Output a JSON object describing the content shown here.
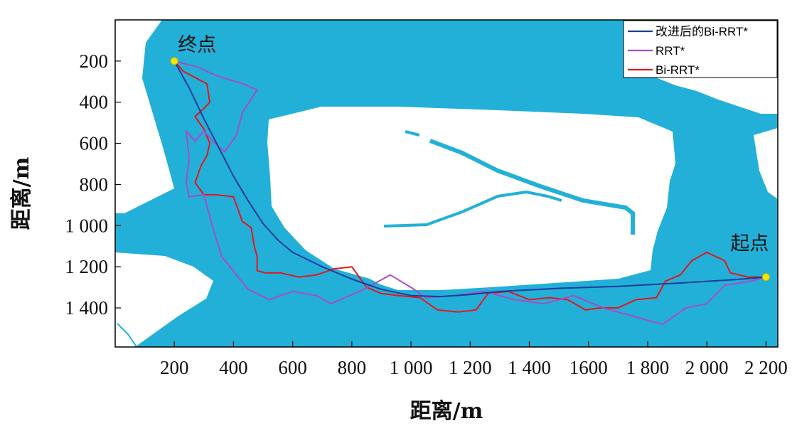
{
  "chart_data": {
    "type": "line",
    "xlabel": "距离/m",
    "ylabel": "距离/m",
    "xlim": [
      0,
      2240
    ],
    "ylim": [
      0,
      1590
    ],
    "y_reversed": true,
    "x_ticks": [
      {
        "value": 200,
        "label": "200"
      },
      {
        "value": 400,
        "label": "400"
      },
      {
        "value": 600,
        "label": "600"
      },
      {
        "value": 800,
        "label": "800"
      },
      {
        "value": 1000,
        "label": "1 000"
      },
      {
        "value": 1200,
        "label": "1 200"
      },
      {
        "value": 1400,
        "label": "1 400"
      },
      {
        "value": 1600,
        "label": "1600"
      },
      {
        "value": 1800,
        "label": "1 800"
      },
      {
        "value": 2000,
        "label": "2 000"
      },
      {
        "value": 2200,
        "label": "2 200"
      }
    ],
    "y_ticks": [
      {
        "value": 200,
        "label": "200"
      },
      {
        "value": 400,
        "label": "400"
      },
      {
        "value": 600,
        "label": "600"
      },
      {
        "value": 800,
        "label": "800"
      },
      {
        "value": 1000,
        "label": "1 000"
      },
      {
        "value": 1200,
        "label": "1 200"
      },
      {
        "value": 1400,
        "label": "1 400"
      }
    ],
    "legend_position": "top-right",
    "water_color": "#22b0d8",
    "annotations": [
      {
        "text": "终点",
        "x": 200,
        "y": 200
      },
      {
        "text": "起点",
        "x": 2200,
        "y": 1250
      }
    ],
    "series": [
      {
        "name": "改进后的Bi-RRT*",
        "color": "#1a3d99",
        "points": [
          [
            200,
            200
          ],
          [
            250,
            330
          ],
          [
            300,
            480
          ],
          [
            350,
            620
          ],
          [
            400,
            760
          ],
          [
            450,
            880
          ],
          [
            500,
            990
          ],
          [
            550,
            1070
          ],
          [
            600,
            1130
          ],
          [
            700,
            1200
          ],
          [
            800,
            1260
          ],
          [
            900,
            1310
          ],
          [
            1000,
            1340
          ],
          [
            1100,
            1345
          ],
          [
            1200,
            1335
          ],
          [
            1300,
            1320
          ],
          [
            1500,
            1305
          ],
          [
            1700,
            1295
          ],
          [
            1900,
            1280
          ],
          [
            2100,
            1262
          ],
          [
            2200,
            1250
          ]
        ]
      },
      {
        "name": "RRT*",
        "color": "#a64dc6",
        "points": [
          [
            200,
            200
          ],
          [
            280,
            230
          ],
          [
            340,
            270
          ],
          [
            430,
            310
          ],
          [
            480,
            340
          ],
          [
            430,
            450
          ],
          [
            410,
            560
          ],
          [
            370,
            640
          ],
          [
            330,
            590
          ],
          [
            300,
            540
          ],
          [
            270,
            590
          ],
          [
            240,
            540
          ],
          [
            250,
            670
          ],
          [
            240,
            790
          ],
          [
            250,
            860
          ],
          [
            300,
            850
          ],
          [
            330,
            1010
          ],
          [
            360,
            1150
          ],
          [
            410,
            1240
          ],
          [
            450,
            1310
          ],
          [
            520,
            1360
          ],
          [
            600,
            1320
          ],
          [
            680,
            1340
          ],
          [
            730,
            1380
          ],
          [
            840,
            1310
          ],
          [
            930,
            1240
          ],
          [
            1000,
            1300
          ],
          [
            1050,
            1350
          ],
          [
            1150,
            1340
          ],
          [
            1250,
            1320
          ],
          [
            1350,
            1360
          ],
          [
            1450,
            1380
          ],
          [
            1550,
            1340
          ],
          [
            1650,
            1400
          ],
          [
            1750,
            1440
          ],
          [
            1850,
            1480
          ],
          [
            1930,
            1400
          ],
          [
            2000,
            1380
          ],
          [
            2060,
            1290
          ],
          [
            2150,
            1270
          ],
          [
            2200,
            1250
          ]
        ]
      },
      {
        "name": "Bi-RRT*",
        "color": "#e8141c",
        "points": [
          [
            200,
            200
          ],
          [
            230,
            250
          ],
          [
            270,
            280
          ],
          [
            310,
            310
          ],
          [
            320,
            400
          ],
          [
            300,
            430
          ],
          [
            270,
            470
          ],
          [
            300,
            530
          ],
          [
            320,
            600
          ],
          [
            310,
            660
          ],
          [
            290,
            710
          ],
          [
            270,
            790
          ],
          [
            300,
            850
          ],
          [
            340,
            850
          ],
          [
            400,
            860
          ],
          [
            430,
            980
          ],
          [
            460,
            1010
          ],
          [
            470,
            1100
          ],
          [
            480,
            1150
          ],
          [
            480,
            1220
          ],
          [
            510,
            1230
          ],
          [
            560,
            1230
          ],
          [
            620,
            1250
          ],
          [
            680,
            1240
          ],
          [
            740,
            1210
          ],
          [
            800,
            1200
          ],
          [
            850,
            1300
          ],
          [
            900,
            1330
          ],
          [
            960,
            1340
          ],
          [
            1030,
            1350
          ],
          [
            1090,
            1410
          ],
          [
            1160,
            1420
          ],
          [
            1220,
            1410
          ],
          [
            1260,
            1330
          ],
          [
            1330,
            1320
          ],
          [
            1400,
            1360
          ],
          [
            1470,
            1350
          ],
          [
            1530,
            1360
          ],
          [
            1590,
            1410
          ],
          [
            1640,
            1400
          ],
          [
            1700,
            1400
          ],
          [
            1760,
            1360
          ],
          [
            1830,
            1350
          ],
          [
            1860,
            1270
          ],
          [
            1910,
            1240
          ],
          [
            1950,
            1170
          ],
          [
            2000,
            1130
          ],
          [
            2060,
            1170
          ],
          [
            2080,
            1230
          ],
          [
            2140,
            1250
          ],
          [
            2200,
            1250
          ]
        ]
      }
    ]
  }
}
